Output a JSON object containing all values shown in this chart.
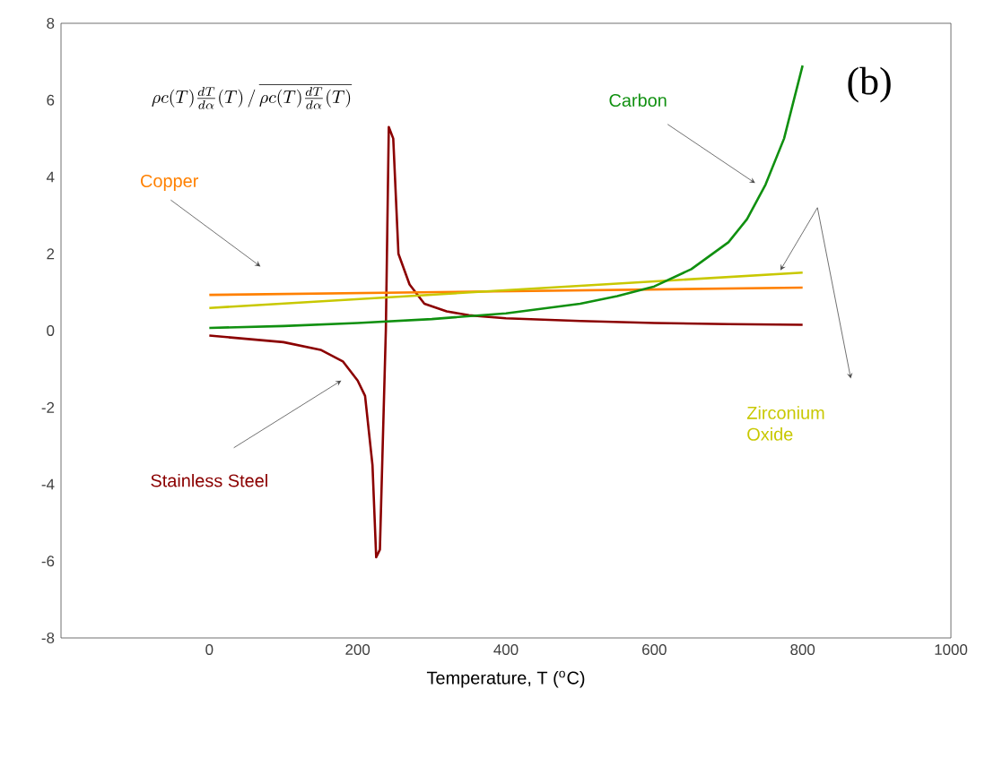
{
  "chart_data": {
    "type": "line",
    "xlabel": "Temperature, T ($^{o}$C)",
    "xlim": [
      -200,
      1000
    ],
    "xticks": [
      0,
      200,
      400,
      600,
      800,
      1000
    ],
    "ylim": [
      -8,
      8
    ],
    "yticks": [
      -8,
      -6,
      -4,
      -2,
      0,
      2,
      4,
      6,
      8
    ],
    "grid": false,
    "legend": false,
    "marker": "none",
    "line_style": "solid",
    "annotations": [
      "\\rho c(T)\\frac{dT}{d\\alpha}(T)\\,/\\,\\overline{\\rho c(T)\\frac{dT}{d\\alpha}(T)}",
      "(b)"
    ],
    "series": [
      {
        "name": "Stainless Steel",
        "color": "#8b0000",
        "x": [
          0,
          100,
          150,
          180,
          200,
          210,
          220,
          225,
          230,
          238,
          242,
          248,
          255,
          270,
          290,
          320,
          350,
          400,
          500,
          600,
          700,
          800
        ],
        "values": [
          -0.13,
          -0.3,
          -0.5,
          -0.8,
          -1.3,
          -1.7,
          -3.5,
          -5.9,
          -5.7,
          0,
          5.3,
          5.0,
          2.0,
          1.2,
          0.7,
          0.5,
          0.4,
          0.32,
          0.25,
          0.2,
          0.17,
          0.15
        ]
      },
      {
        "name": "Copper",
        "color": "#ff8000",
        "x": [
          0,
          800
        ],
        "values": [
          0.93,
          1.12
        ]
      },
      {
        "name": "Zirconium Oxide",
        "color": "#c8c800",
        "x": [
          0,
          800
        ],
        "values": [
          0.59,
          1.51
        ]
      },
      {
        "name": "Carbon",
        "color": "#109010",
        "x": [
          0,
          100,
          200,
          300,
          400,
          500,
          550,
          600,
          650,
          700,
          725,
          750,
          775,
          800
        ],
        "values": [
          0.07,
          0.12,
          0.2,
          0.3,
          0.45,
          0.7,
          0.9,
          1.15,
          1.6,
          2.3,
          2.9,
          3.8,
          5.0,
          6.9
        ]
      }
    ]
  }
}
